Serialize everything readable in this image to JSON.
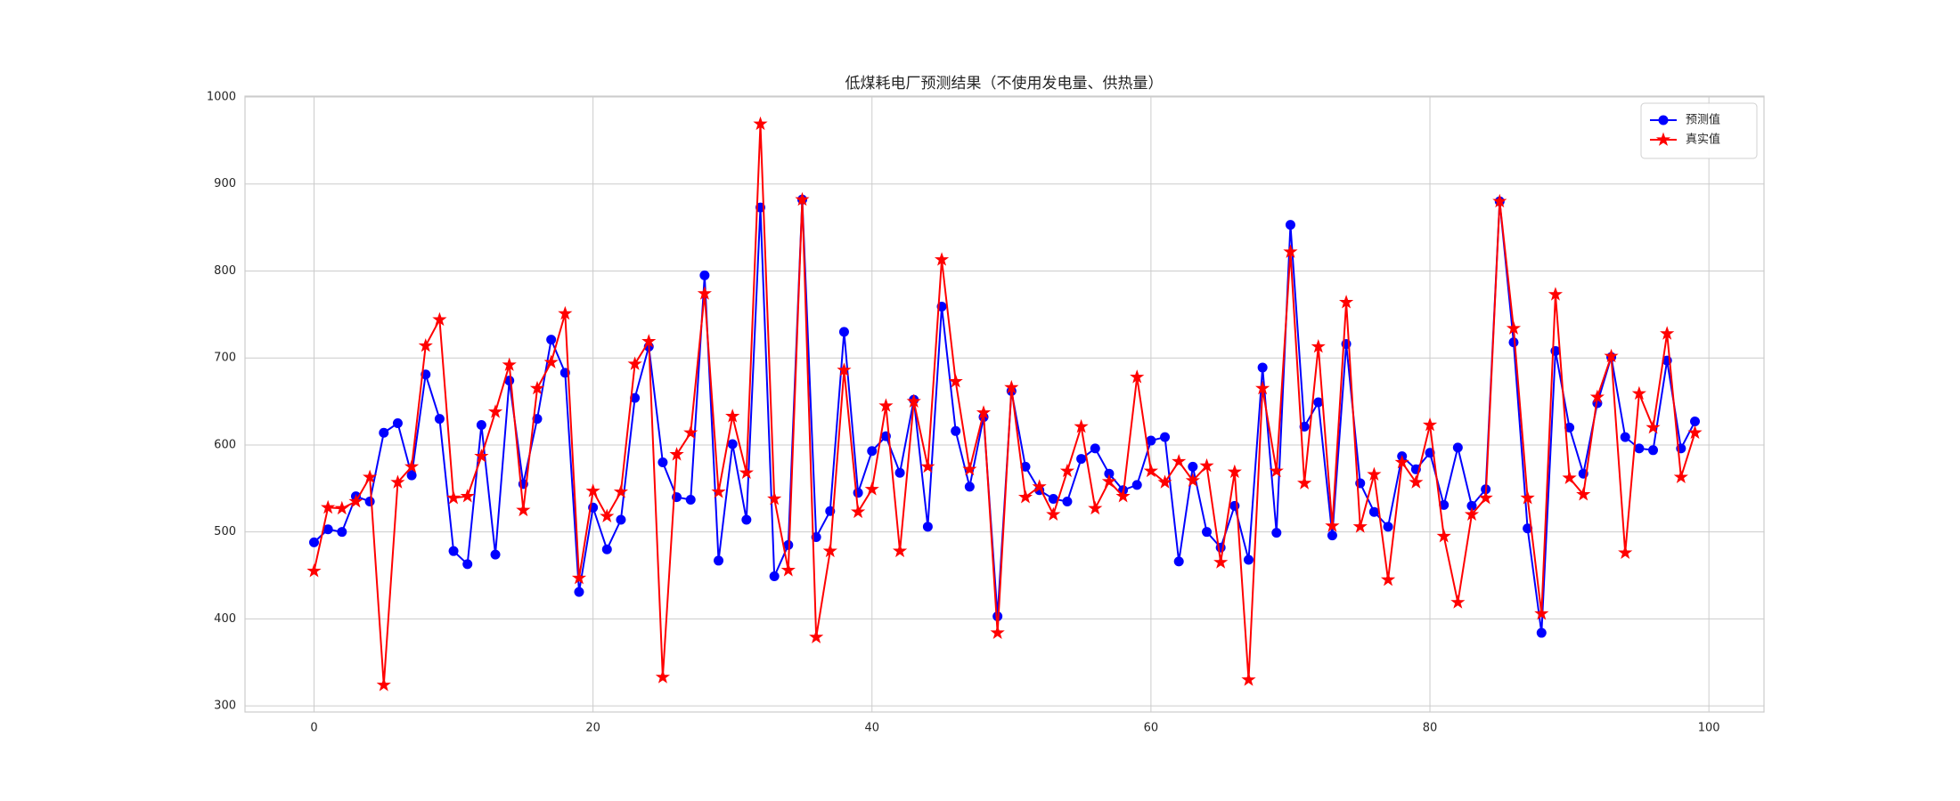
{
  "chart_data": {
    "type": "line",
    "title": "低煤耗电厂预测结果（不使用发电量、供热量）",
    "x": [
      0,
      1,
      2,
      3,
      4,
      5,
      6,
      7,
      8,
      9,
      10,
      11,
      12,
      13,
      14,
      15,
      16,
      17,
      18,
      19,
      20,
      21,
      22,
      23,
      24,
      25,
      26,
      27,
      28,
      29,
      30,
      31,
      32,
      33,
      34,
      35,
      36,
      37,
      38,
      39,
      40,
      41,
      42,
      43,
      44,
      45,
      46,
      47,
      48,
      49,
      50,
      51,
      52,
      53,
      54,
      55,
      56,
      57,
      58,
      59,
      60,
      61,
      62,
      63,
      64,
      65,
      66,
      67,
      68,
      69,
      70,
      71,
      72,
      73,
      74,
      75,
      76,
      77,
      78,
      79,
      80,
      81,
      82,
      83,
      84,
      85,
      86,
      87,
      88,
      89,
      90,
      91,
      92,
      93,
      94,
      95,
      96,
      97,
      98,
      99
    ],
    "series": [
      {
        "name": "预测值",
        "color": "#0000ff",
        "marker": "o",
        "values": [
          488,
          503,
          500,
          541,
          535,
          614,
          625,
          565,
          681,
          630,
          478,
          463,
          623,
          474,
          674,
          555,
          630,
          721,
          683,
          431,
          528,
          480,
          514,
          654,
          713,
          580,
          540,
          537,
          795,
          467,
          601,
          514,
          873,
          449,
          485,
          882,
          494,
          524,
          730,
          545,
          593,
          610,
          568,
          652,
          506,
          759,
          616,
          552,
          632,
          403,
          662,
          575,
          548,
          538,
          535,
          584,
          596,
          567,
          548,
          554,
          605,
          609,
          466,
          575,
          500,
          482,
          530,
          468,
          689,
          499,
          853,
          621,
          649,
          496,
          716,
          556,
          523,
          506,
          587,
          572,
          591,
          531,
          597,
          530,
          549,
          880,
          718,
          504,
          384,
          708,
          620,
          567,
          648,
          701,
          609,
          596,
          594,
          697,
          596,
          627
        ]
      },
      {
        "name": "真实值",
        "color": "#ff0000",
        "marker": "*",
        "values": [
          455,
          528,
          527,
          535,
          563,
          324,
          557,
          575,
          714,
          744,
          539,
          541,
          587,
          638,
          692,
          525,
          665,
          695,
          751,
          447,
          547,
          518,
          546,
          693,
          719,
          333,
          589,
          614,
          774,
          546,
          633,
          568,
          969,
          538,
          456,
          882,
          379,
          478,
          686,
          523,
          549,
          645,
          478,
          650,
          575,
          813,
          673,
          572,
          637,
          384,
          666,
          540,
          552,
          520,
          570,
          621,
          527,
          558,
          541,
          678,
          570,
          557,
          581,
          559,
          576,
          465,
          569,
          330,
          665,
          570,
          822,
          556,
          713,
          507,
          764,
          506,
          566,
          445,
          580,
          557,
          623,
          495,
          419,
          520,
          539,
          880,
          734,
          539,
          406,
          773,
          562,
          543,
          655,
          702,
          476,
          659,
          620,
          728,
          563,
          614
        ]
      }
    ],
    "xlim": [
      -4.95,
      103.95
    ],
    "xticks": [
      0,
      20,
      40,
      60,
      80,
      100
    ],
    "ylim": [
      293,
      1001
    ],
    "yticks": [
      300,
      400,
      500,
      600,
      700,
      800,
      900,
      1000
    ],
    "grid": true,
    "legend": "upper right"
  }
}
